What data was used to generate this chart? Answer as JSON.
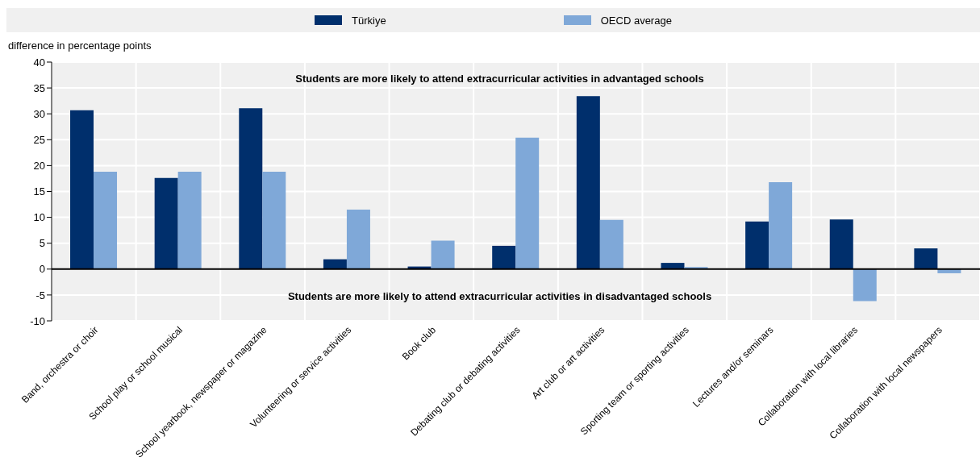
{
  "chart_data": {
    "type": "bar",
    "ylabel": "difference in percentage points",
    "categories": [
      "Band, orchestra or choir",
      "School play or school musical",
      "School yearbook, newspaper or magazine",
      "Volunteering or service activities",
      "Book club",
      "Debating club or debating activities",
      "Art club or art activities",
      "Sporting team or sporting activities",
      "Lectures and/or seminars",
      "Collaboration with local libraries",
      "Collaboration with local newspapers"
    ],
    "series": [
      {
        "name": "Türkiye",
        "color": "#002f6c",
        "values": [
          30.7,
          17.6,
          31.1,
          1.9,
          0.5,
          4.5,
          33.4,
          1.2,
          9.2,
          9.6,
          4.0
        ]
      },
      {
        "name": "OECD average",
        "color": "#7fa8d8",
        "values": [
          18.8,
          18.8,
          18.8,
          11.5,
          5.5,
          25.4,
          9.5,
          0.4,
          16.8,
          -6.2,
          -0.8
        ]
      }
    ],
    "ylim": [
      -10,
      40
    ],
    "yticks": [
      -10,
      -5,
      0,
      5,
      10,
      15,
      20,
      25,
      30,
      35,
      40
    ],
    "grid": true,
    "legend": "top",
    "annotations": [
      "Students are more likely to attend extracurricular activities in advantaged schools",
      "Students are more likely to attend extracurricular activities in disadvantaged schools"
    ]
  }
}
